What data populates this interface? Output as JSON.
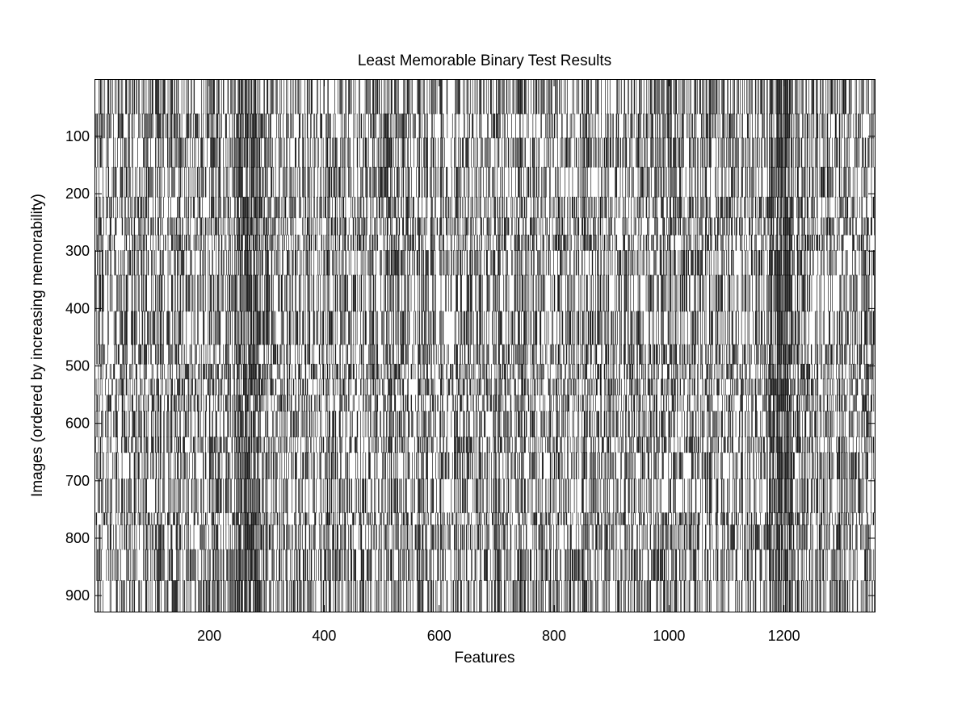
{
  "chart_data": {
    "type": "heatmap",
    "title": "Least Memorable Binary Test Results",
    "xlabel": "Features",
    "ylabel": "Images (ordered by increasing memorability)",
    "xlim": [
      1,
      1360
    ],
    "ylim": [
      1,
      930
    ],
    "y_direction": "reverse",
    "colormap": [
      "#000000",
      "#ffffff"
    ],
    "value_range": [
      0,
      1
    ],
    "x_ticks": [
      200,
      400,
      600,
      800,
      1000,
      1200
    ],
    "y_ticks": [
      100,
      200,
      300,
      400,
      500,
      600,
      700,
      800,
      900
    ],
    "x_tick_labels": [
      "200",
      "400",
      "600",
      "800",
      "1000",
      "1200"
    ],
    "y_tick_labels": [
      "100",
      "200",
      "300",
      "400",
      "500",
      "600",
      "700",
      "800",
      "900"
    ],
    "dense_black_feature_bands": [
      [
        245,
        290
      ],
      [
        1175,
        1215
      ]
    ],
    "grid": false
  }
}
